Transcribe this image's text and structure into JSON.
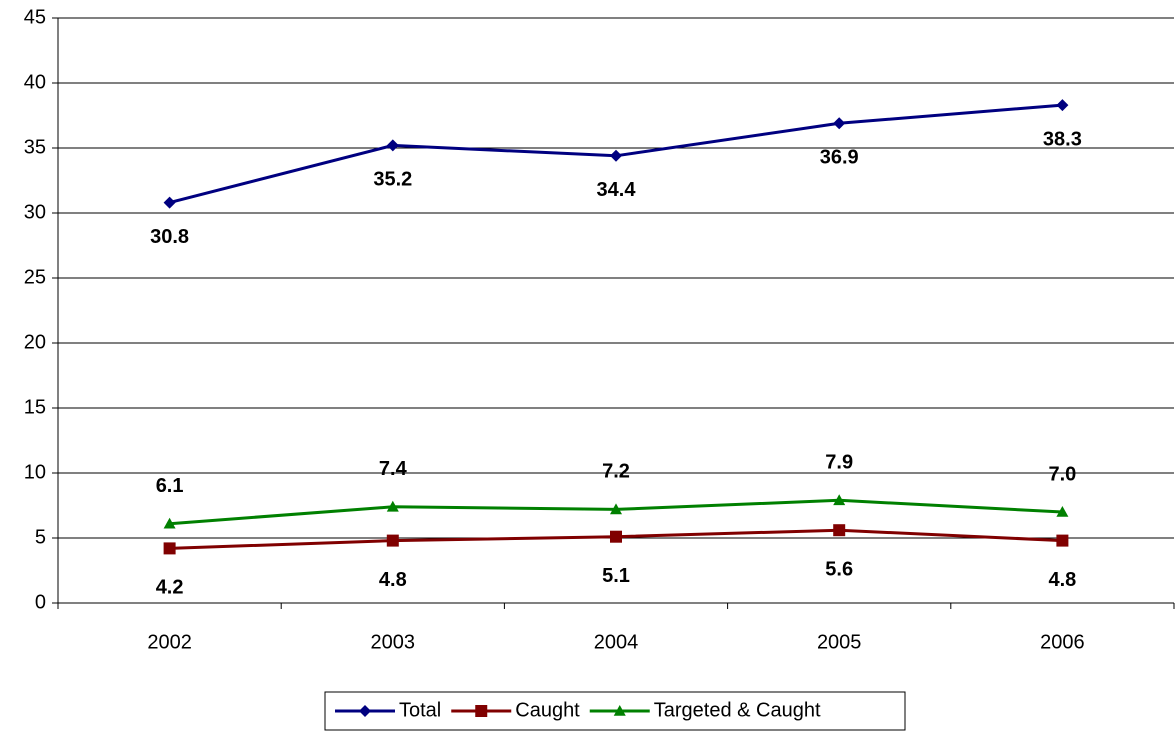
{
  "chart_data": {
    "type": "line",
    "categories": [
      "2002",
      "2003",
      "2004",
      "2005",
      "2006"
    ],
    "series": [
      {
        "name": "Total",
        "color": "#000080",
        "marker": "diamond",
        "values": [
          30.8,
          35.2,
          34.4,
          36.9,
          38.3
        ],
        "value_labels": [
          "30.8",
          "35.2",
          "34.4",
          "36.9",
          "38.3"
        ]
      },
      {
        "name": "Caught",
        "color": "#800000",
        "marker": "square",
        "values": [
          4.2,
          4.8,
          5.1,
          5.6,
          4.8
        ],
        "value_labels": [
          "4.2",
          "4.8",
          "5.1",
          "5.6",
          "4.8"
        ]
      },
      {
        "name": "Targeted & Caught",
        "color": "#008000",
        "marker": "triangle",
        "values": [
          6.1,
          7.4,
          7.2,
          7.9,
          7.0
        ],
        "value_labels": [
          "6.1",
          "7.4",
          "7.2",
          "7.9",
          "7.0"
        ]
      }
    ],
    "ylim": [
      0,
      45
    ],
    "yticks": [
      0,
      5,
      10,
      15,
      20,
      25,
      30,
      35,
      40,
      45
    ],
    "grid": true,
    "legend": "bottom"
  }
}
